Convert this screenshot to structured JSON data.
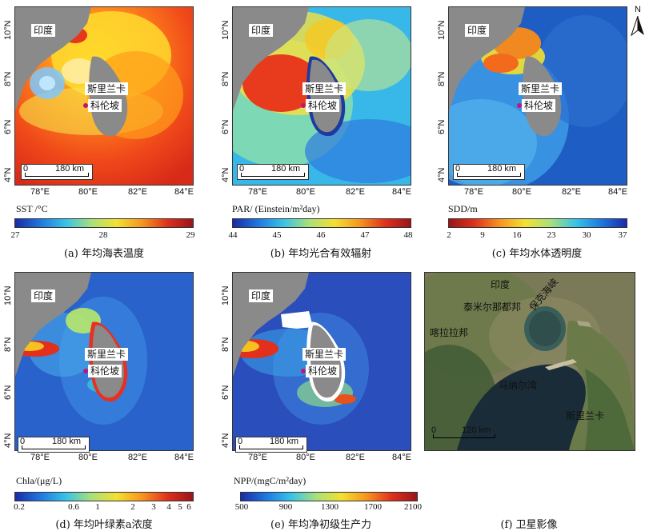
{
  "panels": {
    "a": {
      "caption": "(a) 年均海表温度",
      "colorbar_title": "SST /°C",
      "colorbar_ticks": [
        "27",
        "28",
        "29"
      ],
      "colormap": "jet",
      "labels": {
        "india": "印度",
        "sri_lanka": "斯里兰卡",
        "colombo": "科伦坡"
      },
      "scale": {
        "zero": "0",
        "dist": "180 km"
      }
    },
    "b": {
      "caption": "(b) 年均光合有效辐射",
      "colorbar_title": "PAR/ (Einstein/m²day)",
      "colorbar_ticks": [
        "44",
        "45",
        "46",
        "47",
        "48"
      ],
      "colormap": "jet",
      "labels": {
        "india": "印度",
        "sri_lanka": "斯里兰卡",
        "colombo": "科伦坡"
      },
      "scale": {
        "zero": "0",
        "dist": "180 km"
      }
    },
    "c": {
      "caption": "(c) 年均水体透明度",
      "colorbar_title": "SDD/m",
      "colorbar_ticks": [
        "2",
        "9",
        "16",
        "23",
        "30",
        "37"
      ],
      "colormap": "jet-reversed",
      "labels": {
        "india": "印度",
        "sri_lanka": "斯里兰卡",
        "colombo": "科伦坡"
      },
      "scale": {
        "zero": "0",
        "dist": "180 km"
      },
      "north_label": "N"
    },
    "d": {
      "caption": "(d) 年均叶绿素a浓度",
      "colorbar_title": "Chla/(μg/L)",
      "colorbar_ticks": [
        "0.2",
        "0.6",
        "1",
        "2",
        "3",
        "4",
        "5",
        "6"
      ],
      "colormap": "jet",
      "labels": {
        "india": "印度",
        "sri_lanka": "斯里兰卡",
        "colombo": "科伦坡"
      },
      "scale": {
        "zero": "0",
        "dist": "180 km"
      }
    },
    "e": {
      "caption": "(e) 年均净初级生产力",
      "colorbar_title": "NPP/(mgC/m²day)",
      "colorbar_ticks": [
        "500",
        "900",
        "1300",
        "1700",
        "2100"
      ],
      "colormap": "jet",
      "labels": {
        "india": "印度",
        "sri_lanka": "斯里兰卡",
        "colombo": "科伦坡"
      },
      "scale": {
        "zero": "0",
        "dist": "180 km"
      }
    },
    "f": {
      "caption": "(f) 卫星影像",
      "labels": {
        "india": "印度",
        "tamil_nadu": "泰米尔那都邦",
        "kerala": "喀拉拉邦",
        "palk_strait": "保克海峡",
        "gulf_mannar": "马纳尔湾",
        "sri_lanka": "斯里兰卡"
      },
      "scale": {
        "zero": "0",
        "dist": "120 km"
      }
    }
  },
  "axes": {
    "lon_ticks": [
      "78°E",
      "80°E",
      "82°E",
      "84°E"
    ],
    "lat_ticks": [
      "4°N",
      "6°N",
      "8°N",
      "10°N"
    ]
  },
  "colors": {
    "land": "#8a8a8a",
    "nodata": "#ffffff",
    "colombo_marker": "#c0147a"
  }
}
